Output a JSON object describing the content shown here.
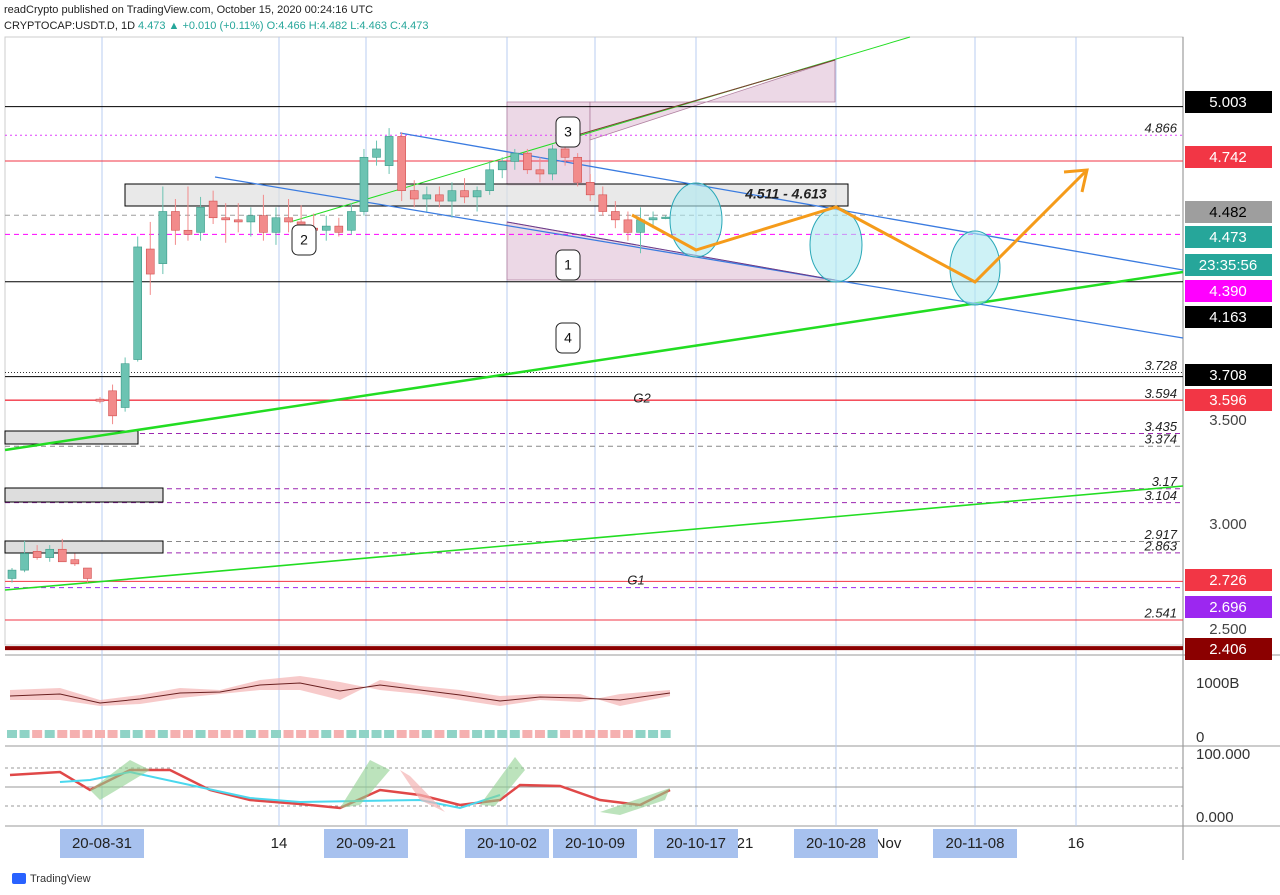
{
  "header": {
    "publisher": "readCrypto published on TradingView.com, October 15, 2020 00:24:16 UTC",
    "symbol": "CRYPTOCAP:USDT.D, 1D",
    "last": "4.473",
    "arrow": "▲",
    "change": "+0.010 (+0.11%)",
    "open": "O:4.466",
    "high": "H:4.482",
    "low": "L:4.463",
    "close": "C:4.473"
  },
  "price_axis": [
    {
      "text": "5.003",
      "color": "#000000",
      "text_color": "#ffffff",
      "line": "solid"
    },
    {
      "text": "4.742",
      "color": "#f23645",
      "text_color": "#ffffff",
      "line": "solid"
    },
    {
      "text": "4.482",
      "color": "#9e9e9e",
      "text_color": "#000000",
      "line": "dashed"
    },
    {
      "text": "4.473",
      "color": "#26a69a",
      "text_color": "#ffffff",
      "line": "none"
    },
    {
      "text": "23:35:56",
      "color": "#26a69a",
      "text_color": "#ffffff",
      "line": "none"
    },
    {
      "text": "4.390",
      "color": "#ff00ff",
      "text_color": "#ffffff",
      "line": "dashed"
    },
    {
      "text": "4.163",
      "color": "#000000",
      "text_color": "#ffffff",
      "line": "solid"
    },
    {
      "text": "3.708",
      "color": "#000000",
      "text_color": "#ffffff",
      "line": "solid"
    },
    {
      "text": "3.596",
      "color": "#f23645",
      "text_color": "#ffffff",
      "line": "solid"
    },
    {
      "text": "3.500",
      "color": "none",
      "text_color": "#444444",
      "line": "none"
    },
    {
      "text": "3.000",
      "color": "none",
      "text_color": "#444444",
      "line": "none"
    },
    {
      "text": "2.726",
      "color": "#f23645",
      "text_color": "#ffffff",
      "line": "solid"
    },
    {
      "text": "2.696",
      "color": "#9c27f0",
      "text_color": "#ffffff",
      "line": "dashed"
    },
    {
      "text": "2.500",
      "color": "none",
      "text_color": "#444444",
      "line": "none"
    },
    {
      "text": "2.406",
      "color": "#8b0000",
      "text_color": "#ffffff",
      "line": "thick"
    }
  ],
  "levels": [
    {
      "label": "4.866",
      "color": "#e040fb",
      "dash": "2 3"
    },
    {
      "label": "3.728",
      "color": "#333333",
      "dash": "1 2"
    },
    {
      "label": "3.594",
      "color": "#f23645",
      "dash": "none"
    },
    {
      "label": "3.435",
      "color": "#9c27b0",
      "dash": "5 4"
    },
    {
      "label": "3.374",
      "color": "#888888",
      "dash": "5 4"
    },
    {
      "label": "3.17",
      "color": "#9c27b0",
      "dash": "5 4"
    },
    {
      "label": "3.104",
      "color": "#9c27b0",
      "dash": "5 4"
    },
    {
      "label": "2.917",
      "color": "#888888",
      "dash": "5 4"
    },
    {
      "label": "2.863",
      "color": "#9c27b0",
      "dash": "5 4"
    },
    {
      "label": "2.541",
      "color": "#f23645",
      "dash": "none"
    }
  ],
  "annotations": {
    "range": "4.511 - 4.613",
    "callouts": [
      "1",
      "2",
      "3",
      "4"
    ],
    "g1": "G1",
    "g2": "G2"
  },
  "indicator_axis": [
    "1000B",
    "0",
    "100.000",
    "0.000"
  ],
  "dates": [
    {
      "text": "14",
      "boxed": false
    },
    {
      "text": "21",
      "boxed": false
    },
    {
      "text": "Nov",
      "boxed": false
    },
    {
      "text": "16",
      "boxed": false
    },
    {
      "text": "20-08-31",
      "boxed": true
    },
    {
      "text": "20-09-21",
      "boxed": true
    },
    {
      "text": "20-10-02",
      "boxed": true
    },
    {
      "text": "20-10-09",
      "boxed": true
    },
    {
      "text": "20-10-17",
      "boxed": true
    },
    {
      "text": "20-10-28",
      "boxed": true
    },
    {
      "text": "20-11-08",
      "boxed": true
    }
  ],
  "candles": [
    [
      2.74,
      2.79,
      2.72,
      2.78
    ],
    [
      2.78,
      2.92,
      2.77,
      2.86
    ],
    [
      2.87,
      2.9,
      2.83,
      2.84
    ],
    [
      2.84,
      2.9,
      2.82,
      2.88
    ],
    [
      2.88,
      2.93,
      2.83,
      2.82
    ],
    [
      2.83,
      2.86,
      2.8,
      2.81
    ],
    [
      2.79,
      2.79,
      2.72,
      2.74
    ],
    [
      3.6,
      3.61,
      3.58,
      3.59
    ],
    [
      3.64,
      3.67,
      3.48,
      3.52
    ],
    [
      3.56,
      3.8,
      3.54,
      3.77
    ],
    [
      3.79,
      4.38,
      3.78,
      4.33
    ],
    [
      4.32,
      4.45,
      4.1,
      4.2
    ],
    [
      4.25,
      4.62,
      4.2,
      4.5
    ],
    [
      4.5,
      4.56,
      4.34,
      4.41
    ],
    [
      4.41,
      4.62,
      4.36,
      4.39
    ],
    [
      4.4,
      4.57,
      4.36,
      4.52
    ],
    [
      4.55,
      4.6,
      4.44,
      4.47
    ],
    [
      4.47,
      4.54,
      4.35,
      4.46
    ],
    [
      4.46,
      4.54,
      4.4,
      4.45
    ],
    [
      4.45,
      4.52,
      4.38,
      4.48
    ],
    [
      4.48,
      4.58,
      4.36,
      4.4
    ],
    [
      4.4,
      4.52,
      4.34,
      4.47
    ],
    [
      4.47,
      4.56,
      4.4,
      4.45
    ],
    [
      4.45,
      4.53,
      4.39,
      4.42
    ],
    [
      4.42,
      4.49,
      4.37,
      4.41
    ],
    [
      4.41,
      4.48,
      4.36,
      4.43
    ],
    [
      4.43,
      4.47,
      4.38,
      4.4
    ],
    [
      4.41,
      4.54,
      4.39,
      4.5
    ],
    [
      4.5,
      4.8,
      4.48,
      4.76
    ],
    [
      4.76,
      4.84,
      4.72,
      4.8
    ],
    [
      4.72,
      4.9,
      4.68,
      4.86
    ],
    [
      4.86,
      4.88,
      4.55,
      4.6
    ],
    [
      4.6,
      4.65,
      4.52,
      4.56
    ],
    [
      4.56,
      4.62,
      4.5,
      4.58
    ],
    [
      4.58,
      4.62,
      4.52,
      4.55
    ],
    [
      4.55,
      4.64,
      4.47,
      4.6
    ],
    [
      4.6,
      4.66,
      4.54,
      4.57
    ],
    [
      4.57,
      4.62,
      4.5,
      4.6
    ],
    [
      4.6,
      4.74,
      4.58,
      4.7
    ],
    [
      4.7,
      4.76,
      4.66,
      4.74
    ],
    [
      4.74,
      4.8,
      4.7,
      4.78
    ],
    [
      4.78,
      4.8,
      4.68,
      4.7
    ],
    [
      4.7,
      4.76,
      4.64,
      4.68
    ],
    [
      4.68,
      4.82,
      4.65,
      4.8
    ],
    [
      4.8,
      4.83,
      4.72,
      4.76
    ],
    [
      4.76,
      4.78,
      4.62,
      4.64
    ],
    [
      4.64,
      4.68,
      4.55,
      4.58
    ],
    [
      4.58,
      4.62,
      4.48,
      4.5
    ],
    [
      4.5,
      4.55,
      4.42,
      4.46
    ],
    [
      4.46,
      4.5,
      4.36,
      4.4
    ],
    [
      4.4,
      4.52,
      4.3,
      4.46
    ],
    [
      4.46,
      4.5,
      4.42,
      4.47
    ],
    [
      4.466,
      4.482,
      4.463,
      4.473
    ]
  ],
  "footer": "TradingView"
}
